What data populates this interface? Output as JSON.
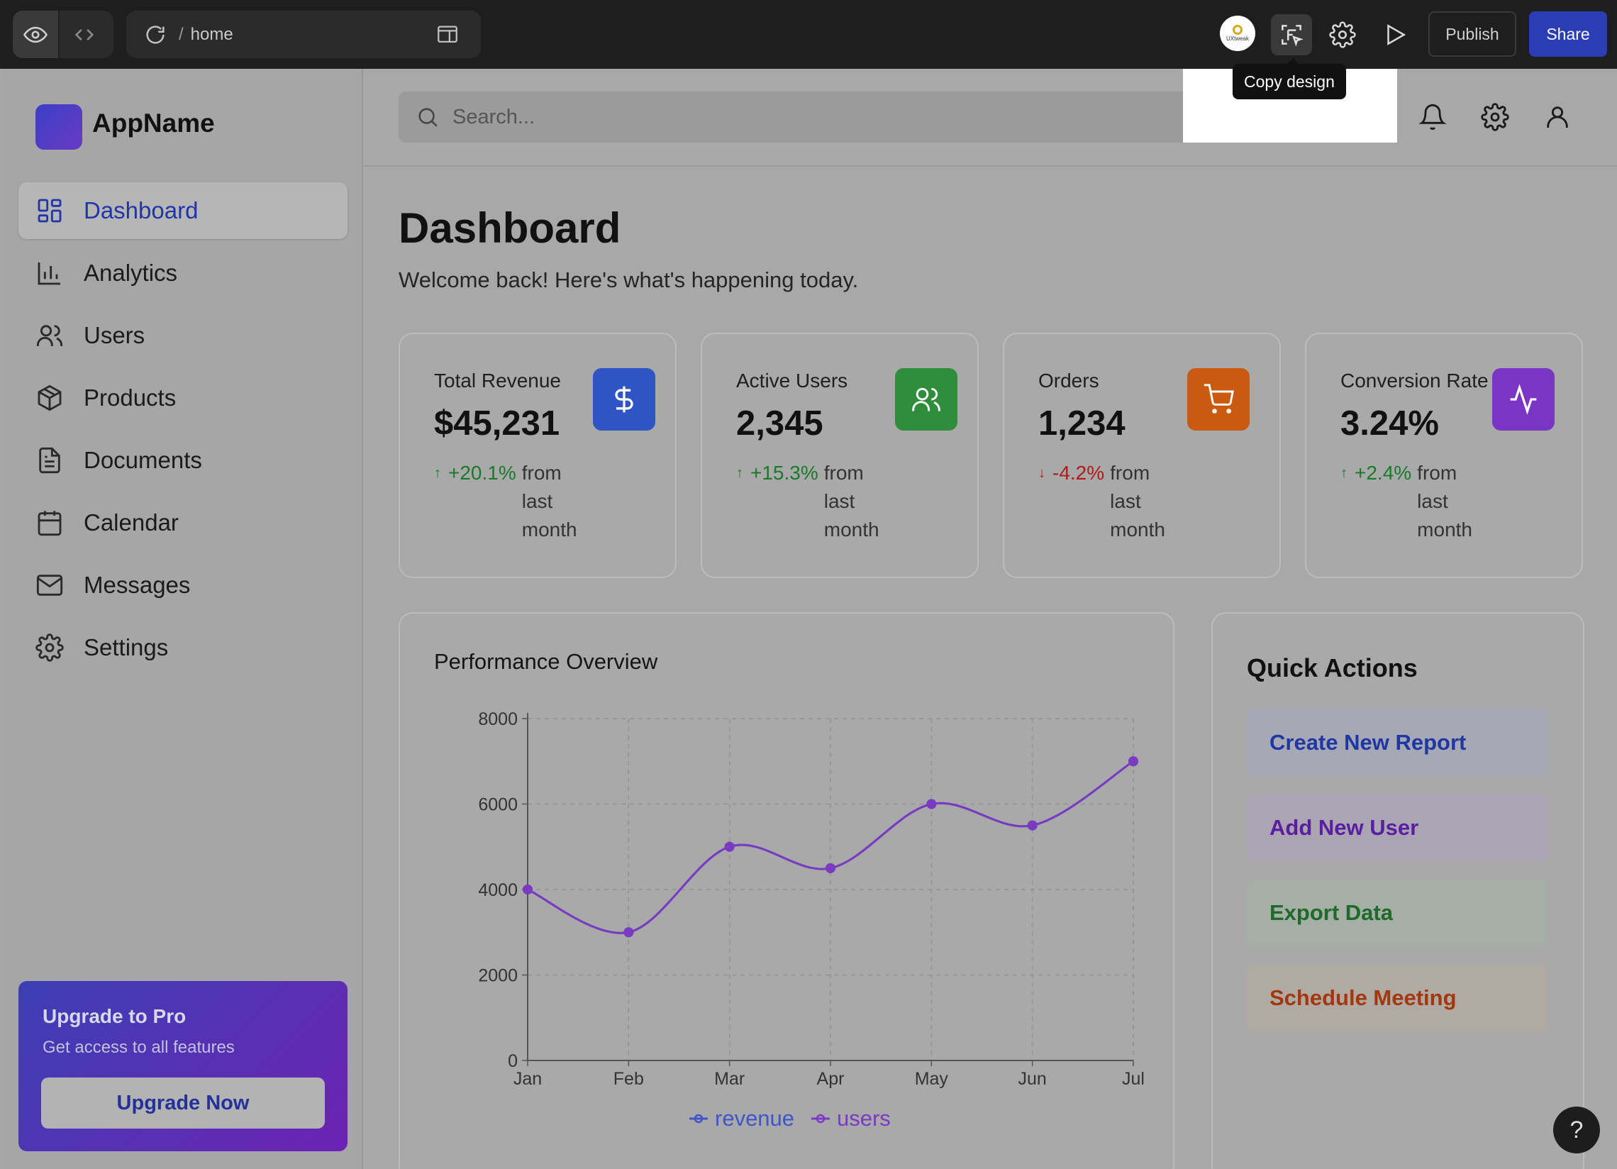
{
  "toolbar": {
    "url_slash": "/",
    "url_path": "home",
    "avatar_text": "UXtweak",
    "publish_label": "Publish",
    "share_label": "Share",
    "tooltip": "Copy design"
  },
  "app": {
    "name": "AppName",
    "nav": [
      {
        "label": "Dashboard",
        "icon": "dashboard-icon",
        "active": true
      },
      {
        "label": "Analytics",
        "icon": "bar-chart-icon"
      },
      {
        "label": "Users",
        "icon": "users-icon"
      },
      {
        "label": "Products",
        "icon": "package-icon"
      },
      {
        "label": "Documents",
        "icon": "document-icon"
      },
      {
        "label": "Calendar",
        "icon": "calendar-icon"
      },
      {
        "label": "Messages",
        "icon": "mail-icon"
      },
      {
        "label": "Settings",
        "icon": "gear-icon"
      }
    ],
    "upgrade": {
      "title": "Upgrade to Pro",
      "subtitle": "Get access to all features",
      "button": "Upgrade Now"
    }
  },
  "header": {
    "search_placeholder": "Search..."
  },
  "main": {
    "title": "Dashboard",
    "subtitle": "Welcome back! Here's what's happening today.",
    "stats": [
      {
        "label": "Total Revenue",
        "value": "$45,231",
        "change": "+20.1%",
        "direction": "up",
        "from": "from last month",
        "icon": "dollar-icon",
        "color": "#2f55c4"
      },
      {
        "label": "Active Users",
        "value": "2,345",
        "change": "+15.3%",
        "direction": "up",
        "from": "from last month",
        "icon": "users-icon",
        "color": "#2f8d3b"
      },
      {
        "label": "Orders",
        "value": "1,234",
        "change": "-4.2%",
        "direction": "down",
        "from": "from last month",
        "icon": "cart-icon",
        "color": "#c95a10"
      },
      {
        "label": "Conversion Rate",
        "value": "3.24%",
        "change": "+2.4%",
        "direction": "up",
        "from": "from last month",
        "icon": "activity-icon",
        "color": "#7a35c4"
      }
    ],
    "performance_title": "Performance Overview",
    "quick_actions_title": "Quick Actions",
    "quick_actions": [
      {
        "label": "Create New Report",
        "bg": "#a6a9b5",
        "fg": "#2037a3"
      },
      {
        "label": "Add New User",
        "bg": "#aba4b2",
        "fg": "#5a1ea3"
      },
      {
        "label": "Export Data",
        "bg": "#a5afa5",
        "fg": "#1f6a2b"
      },
      {
        "label": "Schedule Meeting",
        "bg": "#b1aaa3",
        "fg": "#a3370f"
      }
    ],
    "help_label": "?"
  },
  "chart_data": {
    "type": "line",
    "title": "Performance Overview",
    "categories": [
      "Jan",
      "Feb",
      "Mar",
      "Apr",
      "May",
      "Jun",
      "Jul"
    ],
    "series": [
      {
        "name": "revenue",
        "values": [
          4000,
          3000,
          5000,
          4500,
          6000,
          5500,
          7000
        ],
        "color": "#3f55c8"
      },
      {
        "name": "users",
        "values": [
          4000,
          3000,
          5000,
          4500,
          6000,
          5500,
          7000
        ],
        "color": "#7a3bc2"
      }
    ],
    "yticks": [
      0,
      2000,
      4000,
      6000,
      8000
    ],
    "ylim": [
      0,
      8000
    ],
    "grid": true,
    "legend": "bottom"
  }
}
